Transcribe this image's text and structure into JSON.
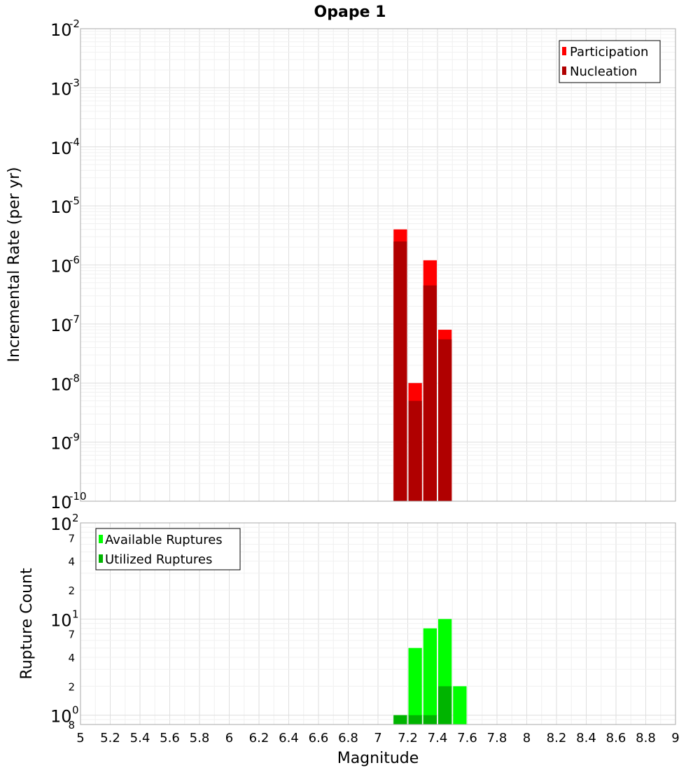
{
  "chart_data": [
    {
      "type": "bar",
      "title": "Opape 1",
      "ylabel": "Incremental Rate (per yr)",
      "y_scale": "log",
      "ylim": [
        1e-10,
        0.01
      ],
      "y_ticks": [
        {
          "base": "10",
          "exp": "-10",
          "value": 1e-10
        },
        {
          "base": "10",
          "exp": "-9",
          "value": 1e-09
        },
        {
          "base": "10",
          "exp": "-8",
          "value": 1e-08
        },
        {
          "base": "10",
          "exp": "-7",
          "value": 1e-07
        },
        {
          "base": "10",
          "exp": "-6",
          "value": 1e-06
        },
        {
          "base": "10",
          "exp": "-5",
          "value": 1e-05
        },
        {
          "base": "10",
          "exp": "-4",
          "value": 0.0001
        },
        {
          "base": "10",
          "exp": "-3",
          "value": 0.001
        },
        {
          "base": "10",
          "exp": "-2",
          "value": 0.01
        }
      ],
      "bin_width": 0.1,
      "series": [
        {
          "name": "Participation",
          "color": "#ff0000",
          "points": [
            {
              "x": 7.15,
              "y": 4e-06
            },
            {
              "x": 7.25,
              "y": 1e-08
            },
            {
              "x": 7.35,
              "y": 1.2e-06
            },
            {
              "x": 7.45,
              "y": 8e-08
            }
          ]
        },
        {
          "name": "Nucleation",
          "color": "#b00000",
          "points": [
            {
              "x": 7.15,
              "y": 2.5e-06
            },
            {
              "x": 7.25,
              "y": 5e-09
            },
            {
              "x": 7.35,
              "y": 4.5e-07
            },
            {
              "x": 7.45,
              "y": 5.5e-08
            }
          ]
        }
      ],
      "legend_position": "top-right",
      "grid": true
    },
    {
      "type": "bar",
      "xlabel": "Magnitude",
      "ylabel": "Rupture Count",
      "y_scale": "log",
      "ylim": [
        0.8,
        100
      ],
      "xlim": [
        5,
        9
      ],
      "x_ticks": [
        "5",
        "5.2",
        "5.4",
        "5.6",
        "5.8",
        "6",
        "6.2",
        "6.4",
        "6.6",
        "6.8",
        "7",
        "7.2",
        "7.4",
        "7.6",
        "7.8",
        "8",
        "8.2",
        "8.4",
        "8.6",
        "8.8",
        "9"
      ],
      "y_major_ticks": [
        {
          "base": "10",
          "exp": "0",
          "value": 1
        },
        {
          "base": "10",
          "exp": "1",
          "value": 10
        },
        {
          "base": "10",
          "exp": "2",
          "value": 100
        }
      ],
      "y_minor_ticks": [
        {
          "label": "8",
          "value": 0.8
        },
        {
          "label": "2",
          "value": 2
        },
        {
          "label": "4",
          "value": 4
        },
        {
          "label": "7",
          "value": 7
        },
        {
          "label": "2",
          "value": 20
        },
        {
          "label": "4",
          "value": 40
        },
        {
          "label": "7",
          "value": 70
        }
      ],
      "bin_width": 0.1,
      "series": [
        {
          "name": "Available Ruptures",
          "color": "#00ff00",
          "points": [
            {
              "x": 7.15,
              "y": 1
            },
            {
              "x": 7.25,
              "y": 5
            },
            {
              "x": 7.35,
              "y": 8
            },
            {
              "x": 7.45,
              "y": 10
            },
            {
              "x": 7.55,
              "y": 2
            }
          ]
        },
        {
          "name": "Utilized Ruptures",
          "color": "#00b400",
          "points": [
            {
              "x": 7.15,
              "y": 1
            },
            {
              "x": 7.25,
              "y": 1
            },
            {
              "x": 7.35,
              "y": 1
            },
            {
              "x": 7.45,
              "y": 2
            }
          ]
        }
      ],
      "legend_position": "top-left",
      "grid": true
    }
  ]
}
